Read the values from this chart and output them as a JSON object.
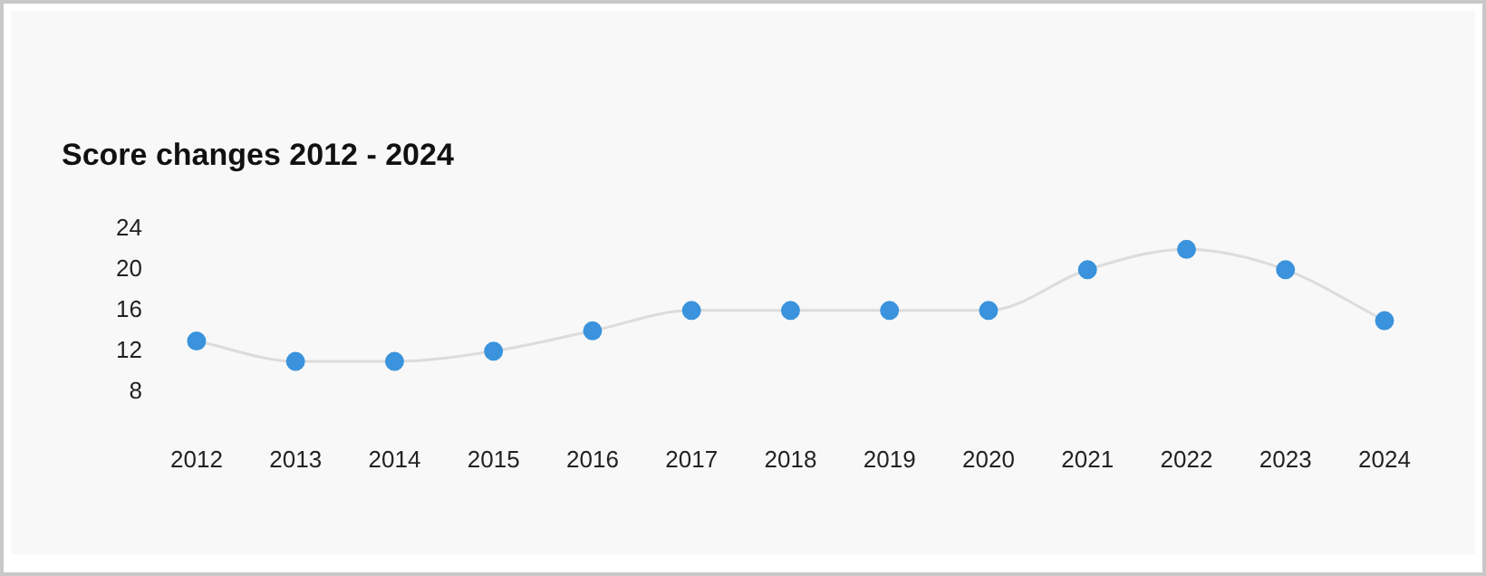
{
  "chart_data": {
    "type": "line",
    "title": "Score changes 2012 - 2024",
    "categories": [
      "2012",
      "2013",
      "2014",
      "2015",
      "2016",
      "2017",
      "2018",
      "2019",
      "2020",
      "2021",
      "2022",
      "2023",
      "2024"
    ],
    "values": [
      13,
      11,
      11,
      12,
      14,
      16,
      16,
      16,
      16,
      20,
      22,
      20,
      15
    ],
    "color": "#3a93dc",
    "marker": "circle",
    "grid": false,
    "legend": false,
    "ylim": [
      8,
      24
    ],
    "yticks": [
      8,
      12,
      16,
      20,
      24
    ]
  }
}
